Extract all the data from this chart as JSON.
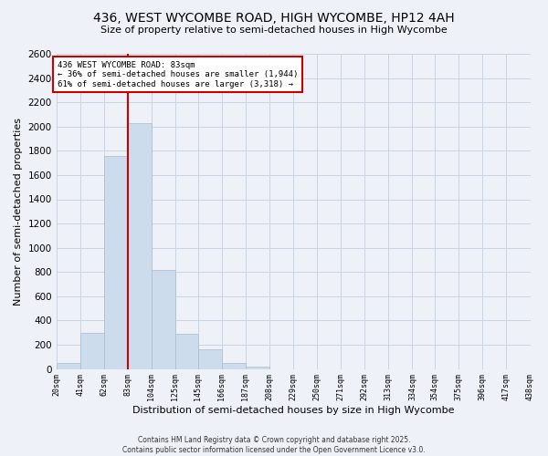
{
  "title": "436, WEST WYCOMBE ROAD, HIGH WYCOMBE, HP12 4AH",
  "subtitle": "Size of property relative to semi-detached houses in High Wycombe",
  "xlabel": "Distribution of semi-detached houses by size in High Wycombe",
  "ylabel": "Number of semi-detached properties",
  "bin_edges": [
    20,
    41,
    62,
    83,
    104,
    125,
    145,
    166,
    187,
    208,
    229,
    250,
    271,
    292,
    313,
    334,
    354,
    375,
    396,
    417,
    438
  ],
  "bin_counts": [
    50,
    300,
    1760,
    2030,
    820,
    290,
    160,
    50,
    20,
    0,
    0,
    0,
    0,
    0,
    0,
    0,
    0,
    0,
    0,
    0
  ],
  "bar_color": "#ccdcec",
  "bar_edge_color": "#aabccc",
  "property_size": 83,
  "vline_color": "#cc0000",
  "vline_x": 83,
  "annotation_line1": "436 WEST WYCOMBE ROAD: 83sqm",
  "annotation_line2": "← 36% of semi-detached houses are smaller (1,944)",
  "annotation_line3": "61% of semi-detached houses are larger (3,318) →",
  "annotation_box_color": "#ffffff",
  "annotation_box_edge": "#cc0000",
  "ylim": [
    0,
    2600
  ],
  "yticks": [
    0,
    200,
    400,
    600,
    800,
    1000,
    1200,
    1400,
    1600,
    1800,
    2000,
    2200,
    2400,
    2600
  ],
  "grid_color": "#c8d4e4",
  "background_color": "#eef2f8",
  "footer_line1": "Contains HM Land Registry data © Crown copyright and database right 2025.",
  "footer_line2": "Contains public sector information licensed under the Open Government Licence v3.0.",
  "tick_labels": [
    "20sqm",
    "41sqm",
    "62sqm",
    "83sqm",
    "104sqm",
    "125sqm",
    "145sqm",
    "166sqm",
    "187sqm",
    "208sqm",
    "229sqm",
    "250sqm",
    "271sqm",
    "292sqm",
    "313sqm",
    "334sqm",
    "354sqm",
    "375sqm",
    "396sqm",
    "417sqm",
    "438sqm"
  ]
}
